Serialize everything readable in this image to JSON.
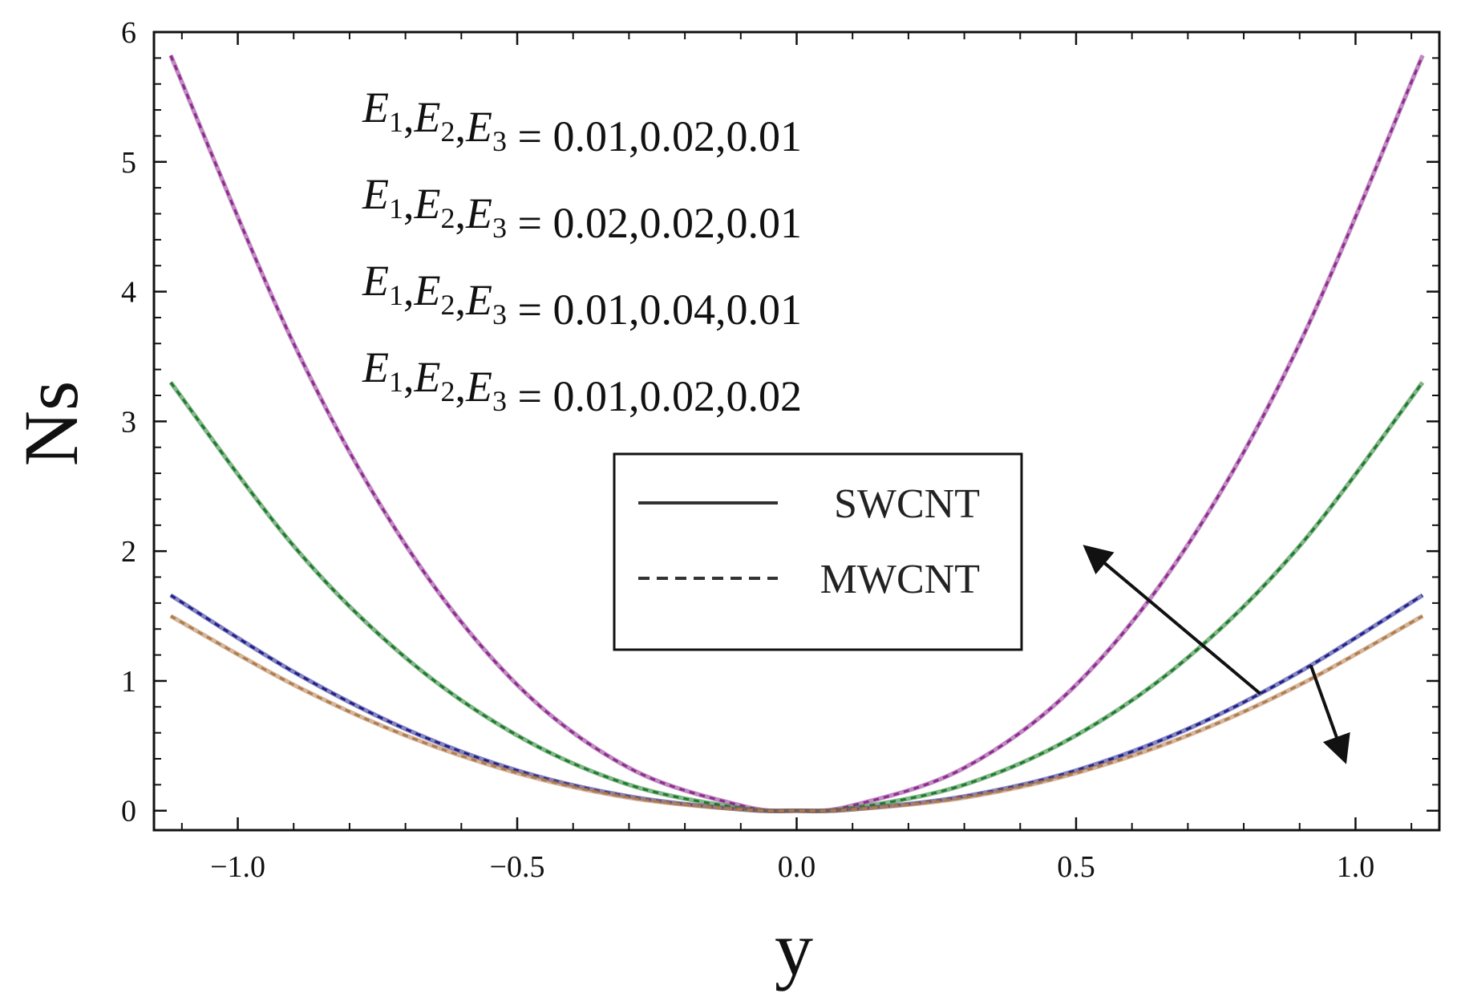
{
  "chart_data": {
    "type": "line",
    "xlabel": "y",
    "ylabel": "Ns",
    "xlim": [
      -1.15,
      1.15
    ],
    "ylim": [
      -0.15,
      6.0
    ],
    "x_ticks": [
      -1.0,
      -0.5,
      0.0,
      0.5,
      1.0
    ],
    "x_tick_labels": [
      "−1.0",
      "−0.5",
      "0.0",
      "0.5",
      "1.0"
    ],
    "y_ticks": [
      0,
      1,
      2,
      3,
      4,
      5,
      6
    ],
    "y_tick_labels": [
      "0",
      "1",
      "2",
      "3",
      "4",
      "5",
      "6"
    ],
    "x_range": [
      -1.12,
      1.12
    ],
    "grid": false,
    "annotations": [
      {
        "vars": [
          "E",
          "1",
          ",",
          "E",
          "2",
          ",",
          "E",
          "3"
        ],
        "value": " = 0.01,0.02,0.01"
      },
      {
        "vars": [
          "E",
          "1",
          ",",
          "E",
          "2",
          ",",
          "E",
          "3"
        ],
        "value": " = 0.02,0.02,0.01"
      },
      {
        "vars": [
          "E",
          "1",
          ",",
          "E",
          "2",
          ",",
          "E",
          "3"
        ],
        "value": " = 0.01,0.04,0.01"
      },
      {
        "vars": [
          "E",
          "1",
          ",",
          "E",
          "2",
          ",",
          "E",
          "3"
        ],
        "value": " = 0.01,0.02,0.02"
      }
    ],
    "legend": {
      "position": "center-right",
      "entries": [
        {
          "label": "SWCNT",
          "style": "solid"
        },
        {
          "label": "MWCNT",
          "style": "dashed"
        }
      ]
    },
    "series": [
      {
        "color": "#8c2a8e",
        "x": [
          -1.12,
          -0.9,
          -0.7,
          -0.5,
          -0.3,
          -0.1,
          0.0,
          0.1,
          0.3,
          0.5,
          0.7,
          0.9,
          1.12
        ],
        "y": [
          5.82,
          3.6,
          2.05,
          0.97,
          0.33,
          0.04,
          0.0,
          0.04,
          0.33,
          0.97,
          2.05,
          3.6,
          5.82
        ]
      },
      {
        "color": "#1d7a2a",
        "x": [
          -1.12,
          -0.9,
          -0.7,
          -0.5,
          -0.3,
          -0.1,
          0.0,
          0.1,
          0.3,
          0.5,
          0.7,
          0.9,
          1.12
        ],
        "y": [
          3.3,
          2.04,
          1.18,
          0.58,
          0.2,
          0.02,
          0.0,
          0.02,
          0.2,
          0.58,
          1.18,
          2.04,
          3.3
        ]
      },
      {
        "color": "#1f1f8c",
        "x": [
          -1.12,
          -0.9,
          -0.7,
          -0.5,
          -0.3,
          -0.1,
          0.0,
          0.1,
          0.3,
          0.5,
          0.7,
          0.9,
          1.12
        ],
        "y": [
          1.66,
          1.07,
          0.63,
          0.31,
          0.11,
          0.01,
          0.0,
          0.01,
          0.11,
          0.31,
          0.63,
          1.07,
          1.66
        ]
      },
      {
        "color": "#b07a4a",
        "x": [
          -1.12,
          -0.9,
          -0.7,
          -0.5,
          -0.3,
          -0.1,
          0.0,
          0.1,
          0.3,
          0.5,
          0.7,
          0.9,
          1.12
        ],
        "y": [
          1.5,
          0.97,
          0.58,
          0.29,
          0.1,
          0.01,
          0.0,
          0.01,
          0.1,
          0.29,
          0.58,
          0.97,
          1.5
        ]
      }
    ],
    "arrows": [
      {
        "from": [
          0.83,
          0.9
        ],
        "to": [
          0.52,
          2.02
        ]
      },
      {
        "from": [
          0.92,
          1.12
        ],
        "to": [
          0.98,
          0.4
        ]
      }
    ]
  }
}
